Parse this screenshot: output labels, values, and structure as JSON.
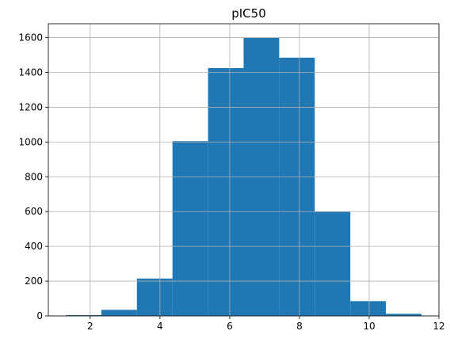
{
  "chart_data": {
    "type": "bar",
    "title": "pIC50",
    "xlabel": "",
    "ylabel": "",
    "bin_edges": [
      1.3,
      2.32,
      3.34,
      4.36,
      5.38,
      6.4,
      7.42,
      8.44,
      9.46,
      10.48,
      11.5
    ],
    "values": [
      5,
      35,
      215,
      1005,
      1425,
      1600,
      1485,
      600,
      85,
      12
    ],
    "xlim": [
      0.8,
      12.0
    ],
    "ylim": [
      0,
      1680
    ],
    "xticks": [
      2,
      4,
      6,
      8,
      10,
      12
    ],
    "yticks": [
      0,
      200,
      400,
      600,
      800,
      1000,
      1200,
      1400,
      1600
    ],
    "grid": true,
    "colors": {
      "bar": "#1f77b4",
      "grid": "#b0b0b0",
      "axis": "#000000"
    }
  }
}
